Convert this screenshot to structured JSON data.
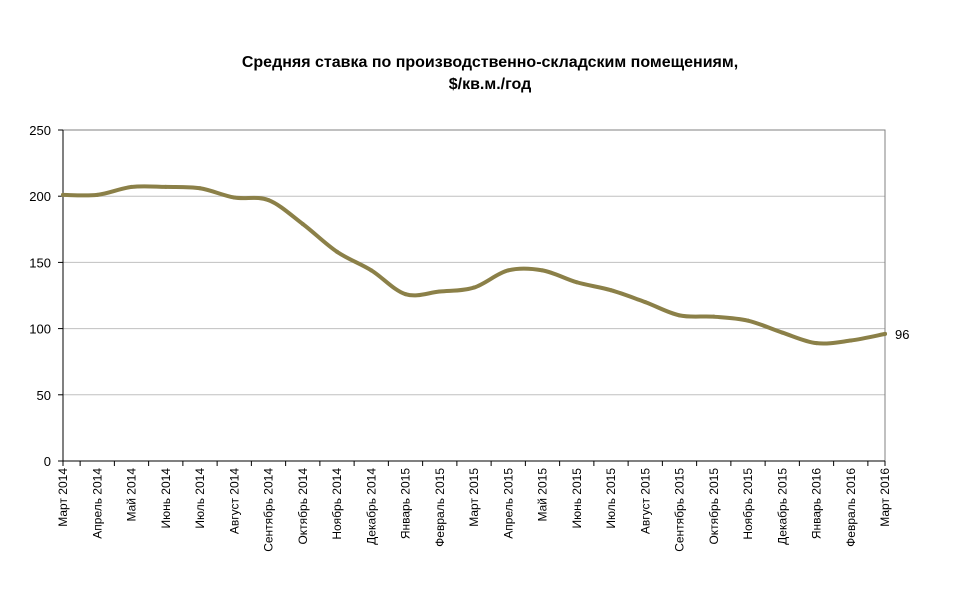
{
  "chart_data": {
    "type": "line",
    "title_line1": "Средняя ставка по производственно-складским помещениям,",
    "title_line2": "$/кв.м./год",
    "ylim": [
      0,
      250
    ],
    "yticks": [
      0,
      50,
      100,
      150,
      200,
      250
    ],
    "grid": true,
    "categories": [
      "Март 2014",
      "Апрель 2014",
      "Май 2014",
      "Июнь 2014",
      "Июль 2014",
      "Август 2014",
      "Сентябрь 2014",
      "Октябрь 2014",
      "Ноябрь 2014",
      "Декабрь 2014",
      "Январь 2015",
      "Февраль 2015",
      "Март 2015",
      "Апрель 2015",
      "Май 2015",
      "Июнь 2015",
      "Июль 2015",
      "Август 2015",
      "Сентябрь 2015",
      "Октябрь 2015",
      "Ноябрь 2015",
      "Декабрь 2015",
      "Январь 2016",
      "Февраль 2016",
      "Март 2016"
    ],
    "series": [
      {
        "values": [
          201,
          201,
          207,
          207,
          206,
          199,
          197,
          179,
          158,
          144,
          126,
          128,
          131,
          144,
          144,
          135,
          129,
          120,
          110,
          109,
          106,
          97,
          89,
          91,
          96
        ],
        "color": "#8B8048"
      }
    ],
    "data_labels": [
      {
        "index": 24,
        "text": "96"
      }
    ]
  }
}
